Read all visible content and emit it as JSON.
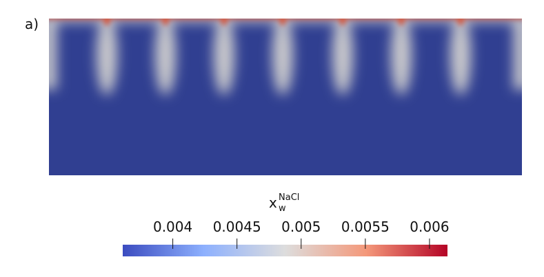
{
  "panel_label": "a)",
  "colorbar": {
    "label": "x",
    "label_sup": "NaCl",
    "label_sub": "w",
    "lim": [
      0.00361,
      0.00614
    ],
    "ticks": [
      0.004,
      0.0045,
      0.005,
      0.0055,
      0.006
    ],
    "colors": [
      "#3b4cc0",
      "#8db0fe",
      "#dddddd",
      "#f4987a",
      "#b40426"
    ]
  }
}
